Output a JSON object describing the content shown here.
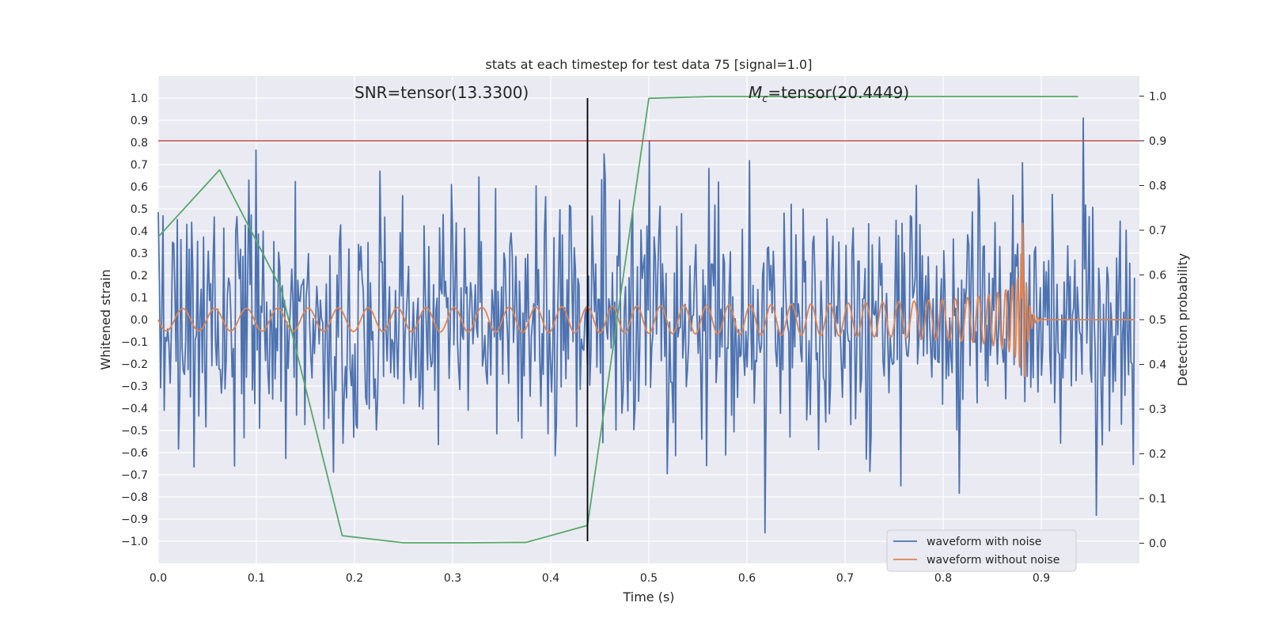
{
  "chart_data": {
    "type": "line",
    "title": "stats at each timestep for test data 75 [signal=1.0]",
    "xlabel": "Time (s)",
    "ylabel": "Whitened strain",
    "y2label": "Detection probability",
    "xlim": [
      0.0,
      1.0
    ],
    "ylim": [
      -1.1,
      1.1
    ],
    "y2lim": [
      -0.045,
      1.045
    ],
    "x_ticks": [
      0.0,
      0.1,
      0.2,
      0.3,
      0.4,
      0.5,
      0.6,
      0.7,
      0.8,
      0.9
    ],
    "x_tick_labels": [
      "0.0",
      "0.1",
      "0.2",
      "0.3",
      "0.4",
      "0.5",
      "0.6",
      "0.7",
      "0.8",
      "0.9"
    ],
    "y_ticks": [
      1.0,
      0.9,
      0.8,
      0.7,
      0.6,
      0.5,
      0.4,
      0.3,
      0.2,
      0.1,
      0.0,
      -0.1,
      -0.2,
      -0.3,
      -0.4,
      -0.5,
      -0.6,
      -0.7,
      -0.8,
      -0.9,
      -1.0
    ],
    "y_tick_labels": [
      "1.0",
      "0.9",
      "0.8",
      "0.7",
      "0.6",
      "0.5",
      "0.4",
      "0.3",
      "0.2",
      "0.1",
      "0.0",
      "−0.1",
      "−0.2",
      "−0.3",
      "−0.4",
      "−0.5",
      "−0.6",
      "−0.7",
      "−0.8",
      "−0.9",
      "−1.0"
    ],
    "y2_ticks": [
      1.0,
      0.9,
      0.8,
      0.7,
      0.6,
      0.5,
      0.4,
      0.3,
      0.2,
      0.1,
      0.0
    ],
    "y2_tick_labels": [
      "1.0",
      "0.9",
      "0.8",
      "0.7",
      "0.6",
      "0.5",
      "0.4",
      "0.3",
      "0.2",
      "0.1",
      "0.0"
    ],
    "grid": true,
    "legend_position": "bottom-right",
    "annotations": {
      "snr": "SNR=tensor(13.3300)",
      "mc_symbol": "M",
      "mc_subscript": "c",
      "mc_value": "=tensor(20.4449)"
    },
    "threshold": {
      "axis": "y2",
      "value": 0.9,
      "color": "#c44e52"
    },
    "marker_line": {
      "x": 0.4375,
      "y_from": -1.0,
      "y_to": 1.0,
      "color": "#000000"
    },
    "series": [
      {
        "name": "waveform with noise",
        "color": "#4c72b0",
        "axis": "y",
        "generated": {
          "kind": "noise",
          "x_start": 0.0,
          "x_end": 0.995,
          "n": 820,
          "sigma": 0.3,
          "clip": [
            -0.97,
            0.99
          ],
          "seed": 75
        }
      },
      {
        "name": "waveform without noise",
        "color": "#dd8452",
        "axis": "y",
        "generated": {
          "kind": "chirp",
          "x_start": 0.0,
          "x_end": 0.995,
          "t_merge": 0.88,
          "f0": 30,
          "power": 0.375
        }
      },
      {
        "color": "#55a868",
        "axis": "y2",
        "x": [
          0.0,
          0.0625,
          0.125,
          0.1875,
          0.25,
          0.3125,
          0.375,
          0.4375,
          0.5,
          0.5625,
          0.625,
          0.6875,
          0.75,
          0.8125,
          0.875,
          0.9375
        ],
        "values": [
          0.685,
          0.835,
          0.57,
          0.017,
          0.001,
          0.001,
          0.002,
          0.04,
          0.995,
          0.999,
          0.999,
          0.999,
          0.999,
          0.999,
          0.999,
          0.999
        ]
      }
    ]
  }
}
